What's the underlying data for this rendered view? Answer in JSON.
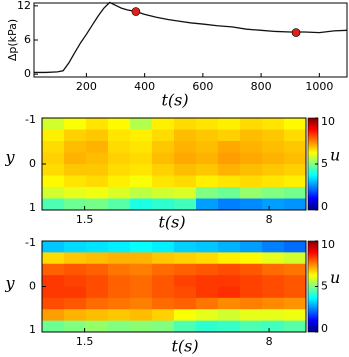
{
  "chart_data": [
    {
      "type": "line",
      "xlabel": "t(s)",
      "ylabel": "Δp(kPa)",
      "xlim": [
        20,
        1095
      ],
      "ylim": [
        -0.5,
        12.5
      ],
      "xticks": [
        200,
        400,
        600,
        800,
        1000
      ],
      "yticks": [
        0,
        6,
        12
      ],
      "x": [
        20,
        60,
        100,
        120,
        140,
        160,
        180,
        200,
        220,
        240,
        260,
        280,
        300,
        320,
        340,
        370,
        400,
        440,
        480,
        520,
        560,
        600,
        650,
        700,
        750,
        800,
        850,
        900,
        950,
        1000,
        1050,
        1095
      ],
      "series": [
        {
          "color": "#111111",
          "values": [
            0.3,
            0.3,
            0.4,
            0.6,
            2.0,
            3.8,
            5.5,
            7.0,
            8.6,
            10.2,
            11.6,
            12.6,
            12.1,
            11.6,
            11.3,
            11.0,
            10.5,
            10.0,
            9.6,
            9.3,
            9.0,
            8.8,
            8.5,
            8.3,
            7.9,
            7.7,
            7.5,
            7.4,
            7.4,
            7.3,
            7.6,
            7.7
          ]
        }
      ],
      "markers": {
        "color": "#e0201b",
        "x": [
          370,
          920
        ],
        "values": [
          11.0,
          7.3
        ]
      }
    },
    {
      "type": "heatmap",
      "xlabel": "t(s)",
      "ylabel": "y",
      "colorbar_label": "u",
      "colormap": "jet",
      "xlim": [
        0,
        9.3
      ],
      "ylim": [
        -1,
        1
      ],
      "y_inverted": true,
      "xticks": [
        1.5,
        8
      ],
      "yticks": [
        -1,
        0,
        1
      ],
      "clim": [
        0,
        10
      ],
      "cticks": [
        0,
        5,
        10
      ],
      "values": [
        [
          5.8,
          6.2,
          6.5,
          6.3,
          5.5,
          6.4,
          6.6,
          6.5,
          6.4,
          6.6,
          6.5,
          6.3
        ],
        [
          6.4,
          6.7,
          6.8,
          6.5,
          6.4,
          6.6,
          6.9,
          6.8,
          6.7,
          6.9,
          6.8,
          6.6
        ],
        [
          6.6,
          6.9,
          7.0,
          6.6,
          6.5,
          6.8,
          7.0,
          6.9,
          7.1,
          7.0,
          6.9,
          6.8
        ],
        [
          6.7,
          7.0,
          6.9,
          6.7,
          6.6,
          6.9,
          7.1,
          7.0,
          7.2,
          7.1,
          7.0,
          6.9
        ],
        [
          6.6,
          6.8,
          6.8,
          6.6,
          6.5,
          6.7,
          6.9,
          6.8,
          7.0,
          6.9,
          6.8,
          6.7
        ],
        [
          6.3,
          6.5,
          6.6,
          6.4,
          6.2,
          6.5,
          6.6,
          6.4,
          6.5,
          6.6,
          6.5,
          6.4
        ],
        [
          5.8,
          6.0,
          6.1,
          5.9,
          5.6,
          5.8,
          5.9,
          5.0,
          4.8,
          5.2,
          5.0,
          4.9
        ],
        [
          4.5,
          4.8,
          4.9,
          4.6,
          4.0,
          4.2,
          4.4,
          2.8,
          2.5,
          2.6,
          2.8,
          2.7
        ]
      ]
    },
    {
      "type": "heatmap",
      "xlabel": "t(s)",
      "ylabel": "y",
      "colorbar_label": "u",
      "colormap": "jet",
      "xlim": [
        0,
        9.3
      ],
      "ylim": [
        -1,
        1
      ],
      "y_inverted": true,
      "xticks": [
        1.5,
        8
      ],
      "yticks": [
        -1,
        0,
        1
      ],
      "clim": [
        0,
        10
      ],
      "cticks": [
        0,
        5,
        10
      ],
      "values": [
        [
          3.2,
          3.4,
          3.5,
          3.6,
          3.8,
          3.6,
          3.3,
          3.2,
          3.0,
          2.8,
          2.5,
          2.3
        ],
        [
          6.6,
          6.8,
          6.9,
          7.0,
          7.0,
          6.8,
          6.7,
          6.6,
          6.4,
          6.3,
          6.0,
          5.8
        ],
        [
          7.8,
          7.9,
          7.8,
          7.6,
          7.5,
          7.7,
          7.8,
          7.9,
          8.0,
          7.9,
          7.7,
          7.6
        ],
        [
          8.2,
          8.1,
          8.0,
          7.8,
          7.7,
          7.9,
          8.1,
          8.2,
          8.2,
          8.1,
          8.0,
          7.9
        ],
        [
          8.2,
          8.2,
          8.0,
          7.8,
          7.7,
          7.9,
          8.0,
          8.2,
          8.3,
          8.1,
          8.0,
          7.9
        ],
        [
          8.0,
          7.9,
          7.7,
          7.6,
          7.5,
          7.7,
          7.8,
          7.6,
          7.4,
          7.5,
          7.4,
          7.3
        ],
        [
          7.2,
          7.0,
          6.9,
          6.8,
          6.9,
          6.7,
          6.2,
          6.0,
          5.8,
          6.0,
          6.0,
          6.1
        ],
        [
          4.8,
          5.0,
          5.2,
          5.0,
          5.1,
          5.0,
          4.5,
          4.2,
          4.3,
          4.5,
          4.4,
          4.6
        ]
      ]
    }
  ]
}
